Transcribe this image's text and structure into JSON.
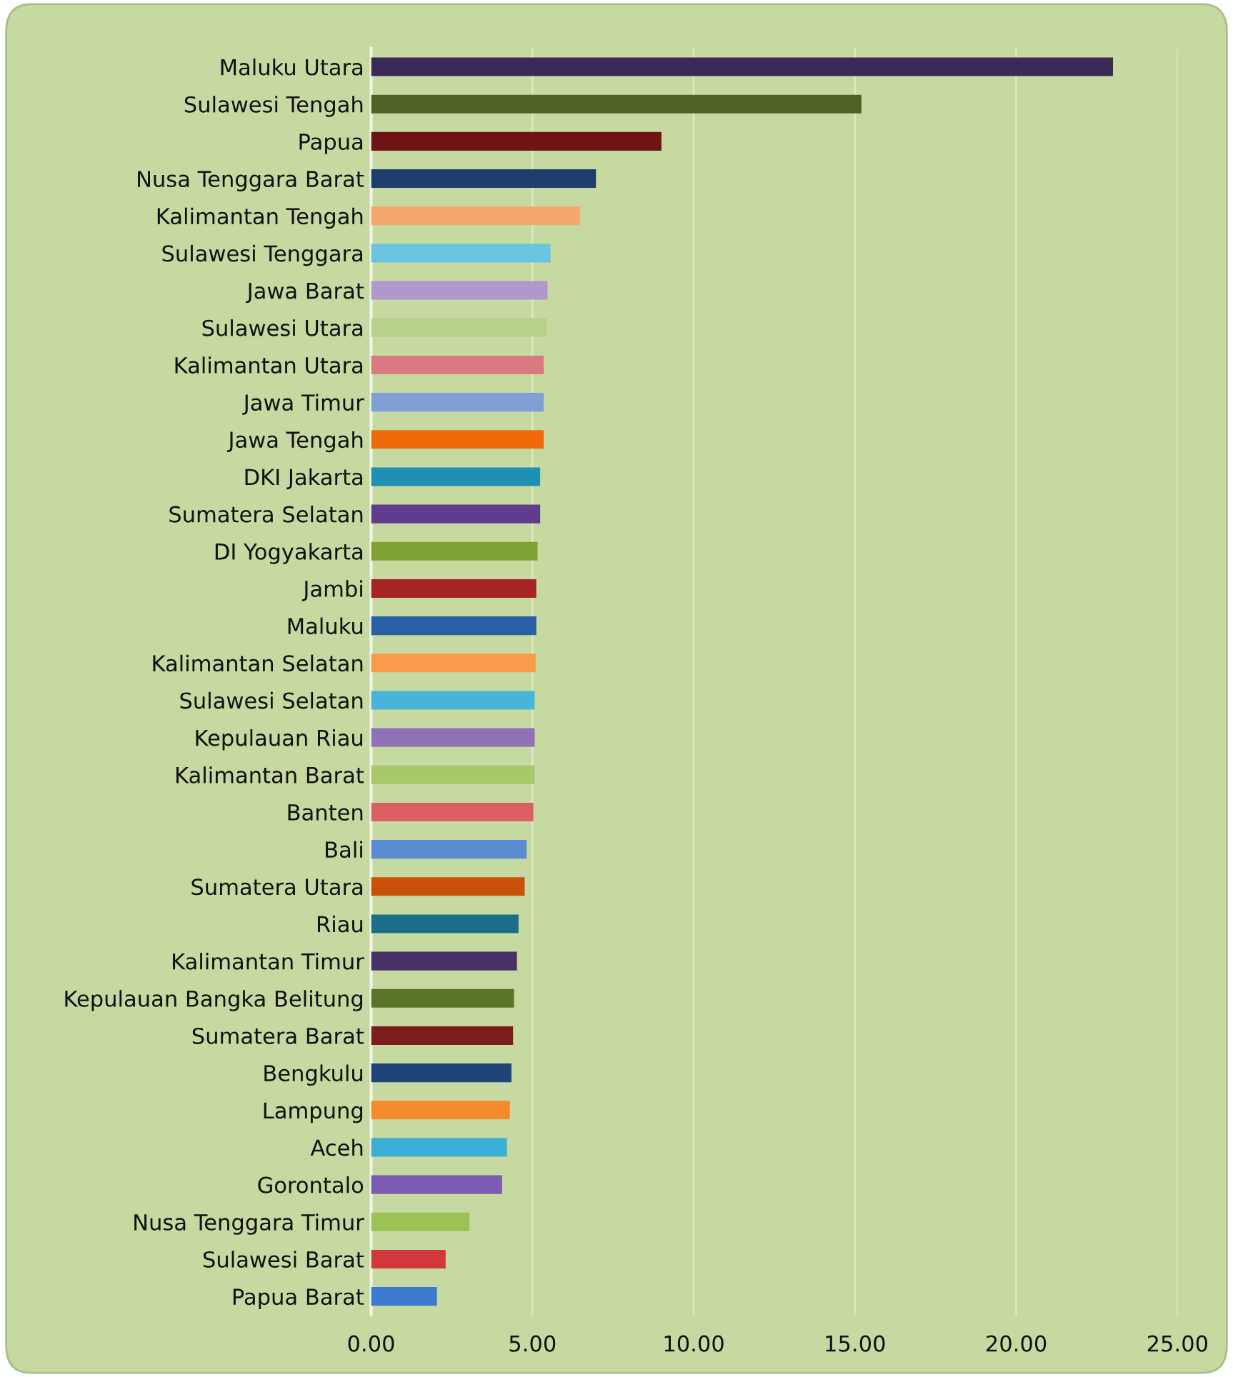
{
  "chart_data": {
    "type": "bar",
    "orientation": "horizontal",
    "categories": [
      "Maluku Utara",
      "Sulawesi Tengah",
      "Papua",
      "Nusa Tenggara Barat",
      "Kalimantan Tengah",
      "Sulawesi Tenggara",
      "Jawa Barat",
      "Sulawesi Utara",
      "Kalimantan Utara",
      "Jawa Timur",
      "Jawa Tengah",
      "DKI Jakarta",
      "Sumatera Selatan",
      "DI Yogyakarta",
      "Jambi",
      "Maluku",
      "Kalimantan Selatan",
      "Sulawesi Selatan",
      "Kepulauan Riau",
      "Kalimantan Barat",
      "Banten",
      "Bali",
      "Sumatera Utara",
      "Riau",
      "Kalimantan Timur",
      "Kepulauan Bangka Belitung",
      "Sumatera Barat",
      "Bengkulu",
      "Lampung",
      "Aceh",
      "Gorontalo",
      "Nusa Tenggara Timur",
      "Sulawesi Barat",
      "Papua Barat"
    ],
    "values": [
      23.0,
      15.2,
      9.0,
      6.97,
      6.48,
      5.56,
      5.47,
      5.44,
      5.35,
      5.35,
      5.35,
      5.24,
      5.24,
      5.16,
      5.12,
      5.12,
      5.1,
      5.07,
      5.07,
      5.07,
      5.03,
      4.82,
      4.76,
      4.57,
      4.52,
      4.43,
      4.4,
      4.35,
      4.3,
      4.21,
      4.06,
      3.05,
      2.31,
      2.04
    ],
    "colors": [
      "#3b2a55",
      "#4f6228",
      "#6e1414",
      "#1f3d6b",
      "#f5a86e",
      "#6cc5e0",
      "#b097cc",
      "#b7d08a",
      "#d87a7f",
      "#7f9fd6",
      "#f06a0a",
      "#1f8fb3",
      "#5f3d8c",
      "#7ea232",
      "#a52424",
      "#2a5fa5",
      "#f99b4a",
      "#47b5d9",
      "#8f72b8",
      "#a8c96a",
      "#d95f62",
      "#5a8bd0",
      "#c95208",
      "#1a6e8a",
      "#463264",
      "#5a7428",
      "#7d1c1c",
      "#1f4478",
      "#f38b2c",
      "#3aaed4",
      "#7b5cb0",
      "#9cc255",
      "#d1383e",
      "#3c7bd0"
    ],
    "xlim": [
      0,
      25
    ],
    "xticks": [
      {
        "value": 0,
        "label": "0.00"
      },
      {
        "value": 5,
        "label": "5.00"
      },
      {
        "value": 10,
        "label": "10.00"
      },
      {
        "value": 15,
        "label": "15.00"
      },
      {
        "value": 20,
        "label": "20.00"
      },
      {
        "value": 25,
        "label": "25.00"
      }
    ],
    "grid": "x",
    "legend": false
  }
}
